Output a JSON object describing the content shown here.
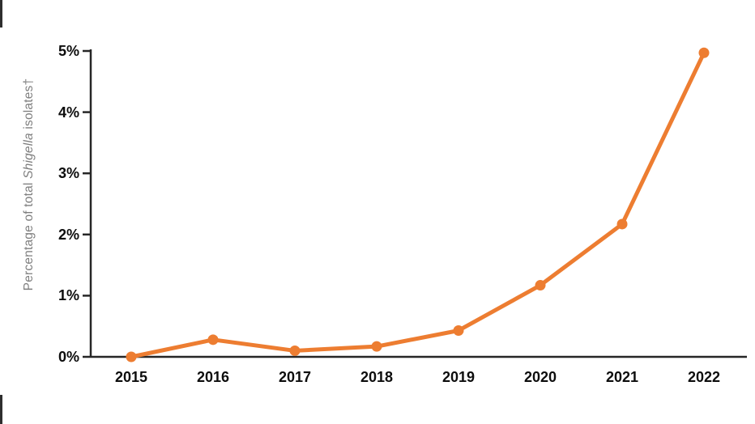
{
  "page": {
    "background": "#ffffff"
  },
  "chart_data": {
    "type": "line",
    "categories": [
      "2015",
      "2016",
      "2017",
      "2018",
      "2019",
      "2020",
      "2021",
      "2022"
    ],
    "values": [
      0.0,
      0.28,
      0.1,
      0.17,
      0.43,
      1.17,
      2.17,
      4.97
    ],
    "ylabel_prefix": "Percentage of total ",
    "ylabel_italic": "Shigella",
    "ylabel_suffix": " isolates†",
    "y_tick_labels": [
      "0%",
      "1%",
      "2%",
      "3%",
      "4%",
      "5%"
    ],
    "ylim": [
      0,
      5
    ],
    "grid": false,
    "legend_position": "none",
    "marker": "circle",
    "line_color": "#ED7D31",
    "axis_color": "#262626",
    "tick_label_color": "#0d0d0d",
    "ylabel_color": "#7F7F7F"
  }
}
